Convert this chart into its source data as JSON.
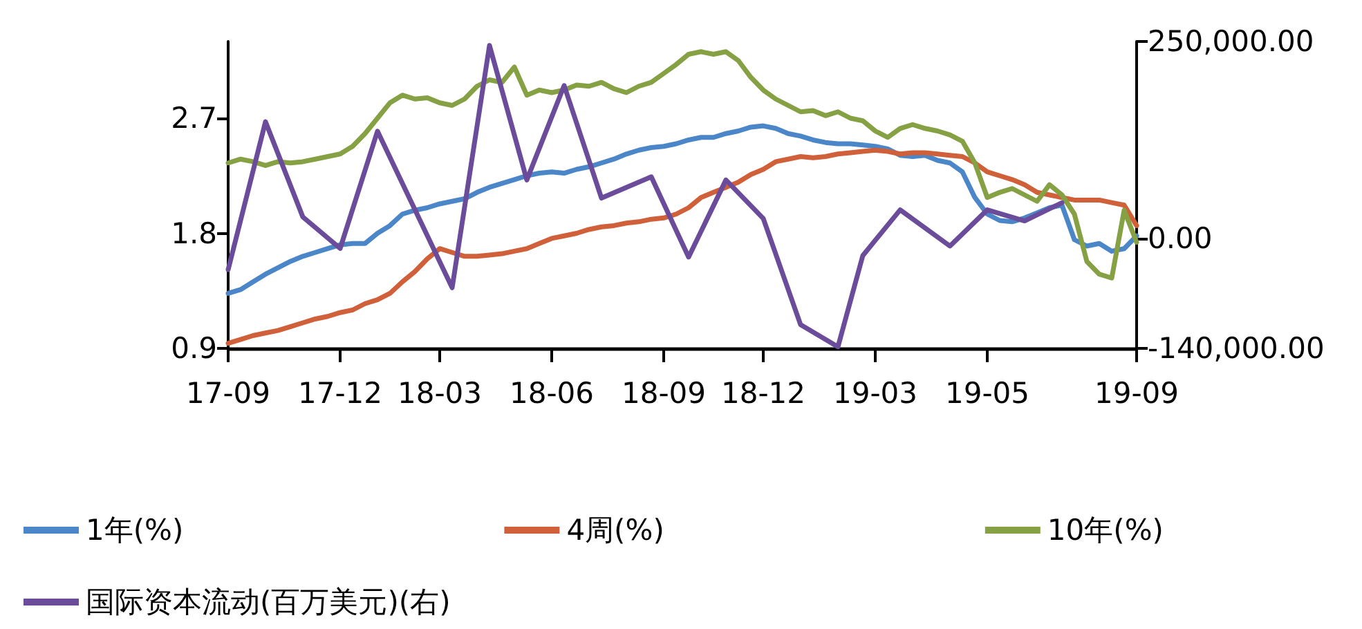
{
  "chart_data": {
    "type": "line",
    "categories": [
      "17-09",
      null,
      null,
      null,
      null,
      null,
      null,
      null,
      null,
      "17-12",
      null,
      null,
      null,
      null,
      null,
      null,
      null,
      "18-03",
      null,
      null,
      null,
      null,
      null,
      null,
      null,
      null,
      "18-06",
      null,
      null,
      null,
      null,
      null,
      null,
      null,
      null,
      "18-09",
      null,
      null,
      null,
      null,
      null,
      null,
      null,
      "18-12",
      null,
      null,
      null,
      null,
      null,
      null,
      null,
      null,
      "19-03",
      null,
      null,
      null,
      null,
      null,
      null,
      null,
      null,
      "19-05",
      null,
      null,
      null,
      null,
      null,
      null,
      null,
      null,
      null,
      null,
      null,
      "19-09"
    ],
    "series": [
      {
        "name": "1年(%)",
        "color": "#4a86c8",
        "values": [
          1.33,
          1.36,
          1.42,
          1.48,
          1.53,
          1.58,
          1.62,
          1.65,
          1.68,
          1.71,
          1.72,
          1.72,
          1.8,
          1.86,
          1.95,
          1.98,
          2.0,
          2.03,
          2.05,
          2.07,
          2.12,
          2.16,
          2.19,
          2.22,
          2.25,
          2.27,
          2.28,
          2.27,
          2.3,
          2.32,
          2.35,
          2.38,
          2.42,
          2.45,
          2.47,
          2.48,
          2.5,
          2.53,
          2.55,
          2.55,
          2.58,
          2.6,
          2.63,
          2.64,
          2.62,
          2.58,
          2.56,
          2.53,
          2.51,
          2.5,
          2.5,
          2.49,
          2.48,
          2.46,
          2.41,
          2.4,
          2.41,
          2.37,
          2.35,
          2.28,
          2.08,
          1.95,
          1.9,
          1.89,
          1.92,
          1.96,
          2.0,
          2.02,
          1.75,
          1.7,
          1.72,
          1.66,
          1.68,
          1.78
        ]
      },
      {
        "name": "4周(%)",
        "color": "#d0603a",
        "values": [
          0.94,
          0.97,
          1.0,
          1.02,
          1.04,
          1.07,
          1.1,
          1.13,
          1.15,
          1.18,
          1.2,
          1.25,
          1.28,
          1.33,
          1.42,
          1.5,
          1.6,
          1.68,
          1.65,
          1.62,
          1.62,
          1.63,
          1.64,
          1.66,
          1.68,
          1.72,
          1.76,
          1.78,
          1.8,
          1.83,
          1.85,
          1.86,
          1.88,
          1.89,
          1.91,
          1.92,
          1.95,
          2.0,
          2.08,
          2.12,
          2.16,
          2.2,
          2.26,
          2.3,
          2.36,
          2.38,
          2.4,
          2.39,
          2.4,
          2.42,
          2.43,
          2.44,
          2.45,
          2.44,
          2.42,
          2.43,
          2.43,
          2.42,
          2.41,
          2.4,
          2.35,
          2.28,
          2.25,
          2.22,
          2.18,
          2.12,
          2.1,
          2.08,
          2.06,
          2.06,
          2.06,
          2.04,
          2.02,
          1.86
        ]
      },
      {
        "name": "10年(%)",
        "color": "#86a044",
        "values": [
          2.35,
          2.38,
          2.36,
          2.33,
          2.36,
          2.35,
          2.36,
          2.38,
          2.4,
          2.42,
          2.48,
          2.58,
          2.7,
          2.82,
          2.88,
          2.85,
          2.86,
          2.82,
          2.8,
          2.85,
          2.95,
          3.0,
          2.98,
          3.1,
          2.88,
          2.92,
          2.9,
          2.92,
          2.96,
          2.95,
          2.98,
          2.93,
          2.9,
          2.95,
          2.98,
          3.05,
          3.12,
          3.2,
          3.22,
          3.2,
          3.22,
          3.15,
          3.02,
          2.92,
          2.85,
          2.8,
          2.75,
          2.76,
          2.72,
          2.75,
          2.7,
          2.68,
          2.6,
          2.55,
          2.62,
          2.65,
          2.62,
          2.6,
          2.57,
          2.52,
          2.35,
          2.08,
          2.12,
          2.15,
          2.1,
          2.05,
          2.18,
          2.1,
          1.95,
          1.58,
          1.48,
          1.45,
          1.98,
          1.73
        ]
      },
      {
        "name": "国际资本流动(百万美元)(右)",
        "color": "#6b4c9a",
        "axis": "y2",
        "values": [
          -40000,
          null,
          null,
          148000,
          null,
          null,
          27000,
          null,
          null,
          -13000,
          null,
          null,
          136000,
          null,
          null,
          null,
          null,
          null,
          -63000,
          null,
          null,
          245000,
          null,
          null,
          74000,
          null,
          null,
          194000,
          null,
          null,
          51000,
          null,
          null,
          null,
          78000,
          null,
          null,
          -24000,
          null,
          null,
          74000,
          null,
          null,
          25000,
          null,
          null,
          -110000,
          null,
          null,
          -138000,
          null,
          -22000,
          null,
          null,
          36000,
          null,
          null,
          null,
          -10000,
          null,
          null,
          36000,
          null,
          null,
          22000,
          null,
          null,
          45000,
          null,
          null,
          null,
          null,
          null,
          null
        ]
      }
    ],
    "ylim": [
      0.9,
      3.3
    ],
    "yticks": [
      0.9,
      1.8,
      2.7
    ],
    "y2lim": [
      -140000,
      250000
    ],
    "y2ticks": [
      {
        "value": -140000,
        "label": "-140,000.00"
      },
      {
        "value": 0,
        "label": "0.00"
      },
      {
        "value": 250000,
        "label": "250,000.00"
      }
    ],
    "legend": "bottom",
    "grid": false,
    "marker": "none",
    "line_style": "solid"
  }
}
